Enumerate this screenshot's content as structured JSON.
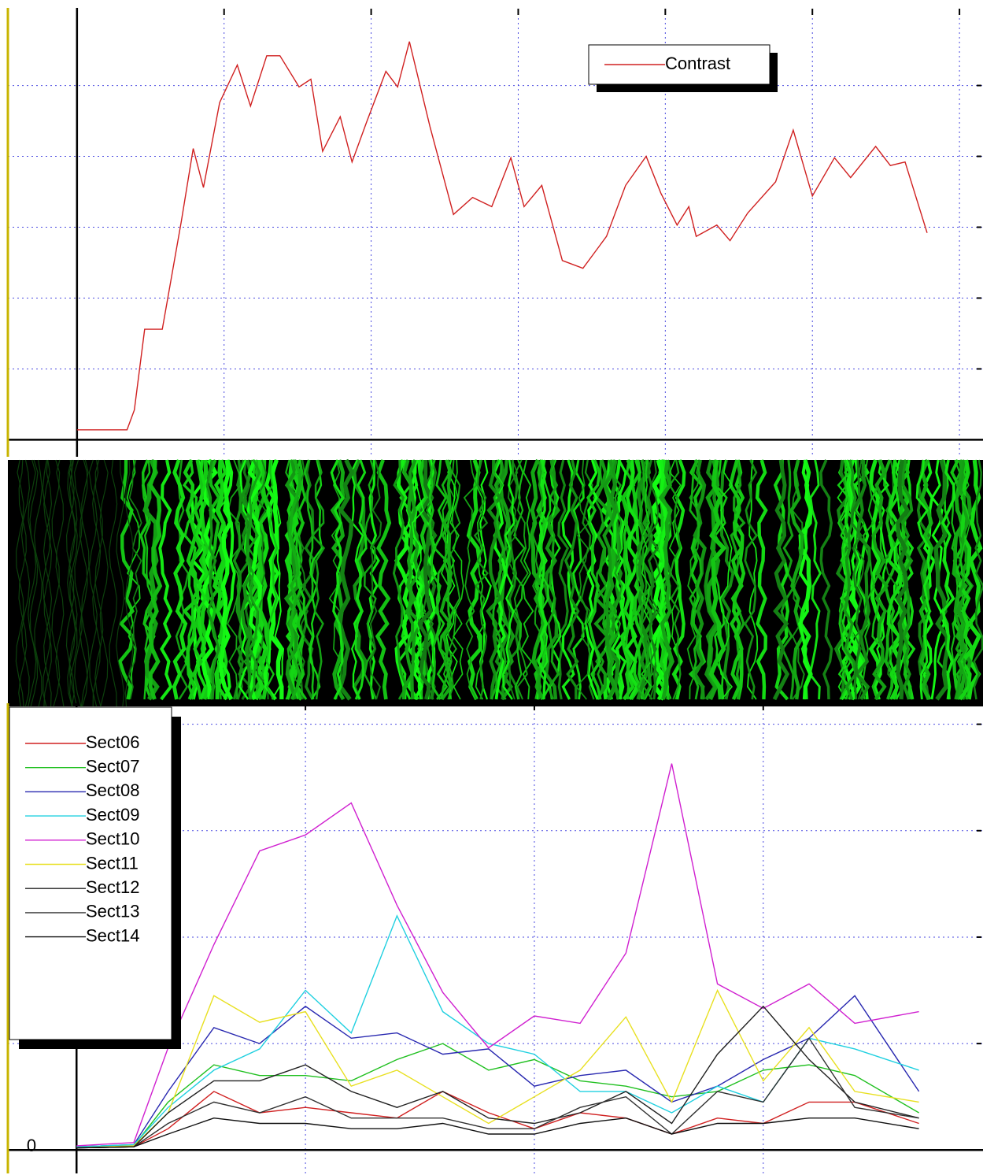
{
  "chart_data": [
    {
      "type": "line",
      "legend": "upper right",
      "grid": true,
      "x": [
        0,
        0.34,
        0.39,
        0.46,
        0.58,
        0.71,
        0.79,
        0.86,
        0.97,
        1.09,
        1.18,
        1.29,
        1.38,
        1.51,
        1.59,
        1.67,
        1.79,
        1.87,
        1.97,
        2.1,
        2.18,
        2.26,
        2.4,
        2.56,
        2.69,
        2.82,
        2.95,
        3.04,
        3.16,
        3.3,
        3.44,
        3.6,
        3.73,
        3.87,
        3.97,
        4.08,
        4.16,
        4.21,
        4.35,
        4.44,
        4.56,
        4.75,
        4.87,
        5.0,
        5.15,
        5.26,
        5.43,
        5.53,
        5.63,
        5.78
      ],
      "series": [
        {
          "name": "Contrast",
          "color": "#d02020",
          "values": [
            0.14,
            0.14,
            0.42,
            1.56,
            1.56,
            3.09,
            4.11,
            3.56,
            4.76,
            5.29,
            4.71,
            5.42,
            5.42,
            4.98,
            5.09,
            4.07,
            4.56,
            3.92,
            4.49,
            5.2,
            4.98,
            5.62,
            4.42,
            3.18,
            3.42,
            3.29,
            3.98,
            3.29,
            3.59,
            2.53,
            2.42,
            2.87,
            3.59,
            4.0,
            3.48,
            3.03,
            3.29,
            2.87,
            3.03,
            2.81,
            3.2,
            3.64,
            4.37,
            3.44,
            3.98,
            3.7,
            4.14,
            3.87,
            3.92,
            2.92
          ]
        }
      ],
      "xlim": [
        -0.47,
        6.16
      ],
      "ylim": [
        -0.24,
        6.04
      ],
      "xticks": [
        {
          "value": 1,
          "label": null
        },
        {
          "value": 2,
          "label": null
        },
        {
          "value": 3,
          "label": null
        },
        {
          "value": 4,
          "label": null
        },
        {
          "value": 5,
          "label": null
        },
        {
          "value": 6,
          "label": null
        }
      ],
      "yticks": [
        {
          "value": 1,
          "label": null
        },
        {
          "value": 2,
          "label": null
        },
        {
          "value": 3,
          "label": null
        },
        {
          "value": 4,
          "label": null
        },
        {
          "value": 5,
          "label": null
        }
      ]
    },
    {
      "type": "line",
      "legend": "upper left",
      "grid": true,
      "x": [
        0,
        0.25,
        0.4,
        0.6,
        0.8,
        1.0,
        1.2,
        1.4,
        1.6,
        1.8,
        2.0,
        2.2,
        2.4,
        2.6,
        2.8,
        3.0,
        3.2,
        3.4,
        3.68
      ],
      "series": [
        {
          "name": "Sect06",
          "color": "#d02020",
          "values": [
            0.02,
            0.03,
            0.2,
            0.55,
            0.35,
            0.4,
            0.35,
            0.3,
            0.55,
            0.35,
            0.2,
            0.35,
            0.3,
            0.15,
            0.3,
            0.25,
            0.45,
            0.45,
            0.25
          ]
        },
        {
          "name": "Sect07",
          "color": "#20c020",
          "values": [
            0.02,
            0.04,
            0.45,
            0.8,
            0.7,
            0.7,
            0.65,
            0.85,
            1.0,
            0.75,
            0.85,
            0.65,
            0.6,
            0.5,
            0.55,
            0.75,
            0.8,
            0.7,
            0.35
          ]
        },
        {
          "name": "Sect08",
          "color": "#2828b0",
          "values": [
            0.03,
            0.05,
            0.55,
            1.15,
            1.0,
            1.35,
            1.05,
            1.1,
            0.9,
            0.95,
            0.6,
            0.7,
            0.75,
            0.45,
            0.6,
            0.85,
            1.05,
            1.45,
            0.55
          ]
        },
        {
          "name": "Sect09",
          "color": "#20d0e0",
          "values": [
            0.03,
            0.05,
            0.4,
            0.75,
            0.95,
            1.5,
            1.1,
            2.2,
            1.3,
            1.0,
            0.9,
            0.55,
            0.55,
            0.35,
            0.6,
            0.45,
            1.05,
            0.95,
            0.75
          ]
        },
        {
          "name": "Sect10",
          "color": "#d020d0",
          "values": [
            0.04,
            0.07,
            0.96,
            1.93,
            2.81,
            2.96,
            3.26,
            2.3,
            1.48,
            0.96,
            1.26,
            1.19,
            1.85,
            3.63,
            1.56,
            1.33,
            1.56,
            1.19,
            1.3
          ]
        },
        {
          "name": "Sect11",
          "color": "#e8e020",
          "values": [
            0.02,
            0.04,
            0.35,
            1.45,
            1.2,
            1.3,
            0.6,
            0.75,
            0.5,
            0.25,
            0.5,
            0.75,
            1.25,
            0.45,
            1.5,
            0.65,
            1.15,
            0.55,
            0.45
          ]
        },
        {
          "name": "Sect12",
          "color": "#202020",
          "values": [
            0.02,
            0.03,
            0.35,
            0.65,
            0.65,
            0.8,
            0.55,
            0.4,
            0.55,
            0.3,
            0.25,
            0.35,
            0.55,
            0.25,
            0.9,
            1.35,
            0.85,
            0.45,
            0.3
          ]
        },
        {
          "name": "Sect13",
          "color": "#303030",
          "values": [
            0.02,
            0.03,
            0.25,
            0.45,
            0.35,
            0.5,
            0.3,
            0.3,
            0.3,
            0.2,
            0.2,
            0.4,
            0.5,
            0.15,
            0.55,
            0.45,
            1.05,
            0.4,
            0.3
          ]
        },
        {
          "name": "Sect14",
          "color": "#101010",
          "values": [
            0.02,
            0.03,
            0.15,
            0.3,
            0.25,
            0.25,
            0.2,
            0.2,
            0.25,
            0.15,
            0.15,
            0.25,
            0.3,
            0.15,
            0.25,
            0.25,
            0.3,
            0.3,
            0.2
          ]
        }
      ],
      "xlim": [
        -0.3,
        3.96
      ],
      "ylim": [
        -0.22,
        4.16
      ],
      "xticks": [
        {
          "value": 1,
          "label": null
        },
        {
          "value": 2,
          "label": null
        },
        {
          "value": 3,
          "label": null
        }
      ],
      "yticks": [
        {
          "value": 0,
          "label": "0"
        },
        {
          "value": 1,
          "label": null
        },
        {
          "value": 2,
          "label": null
        },
        {
          "value": 3,
          "label": null
        },
        {
          "value": 4,
          "label": null
        }
      ]
    }
  ]
}
